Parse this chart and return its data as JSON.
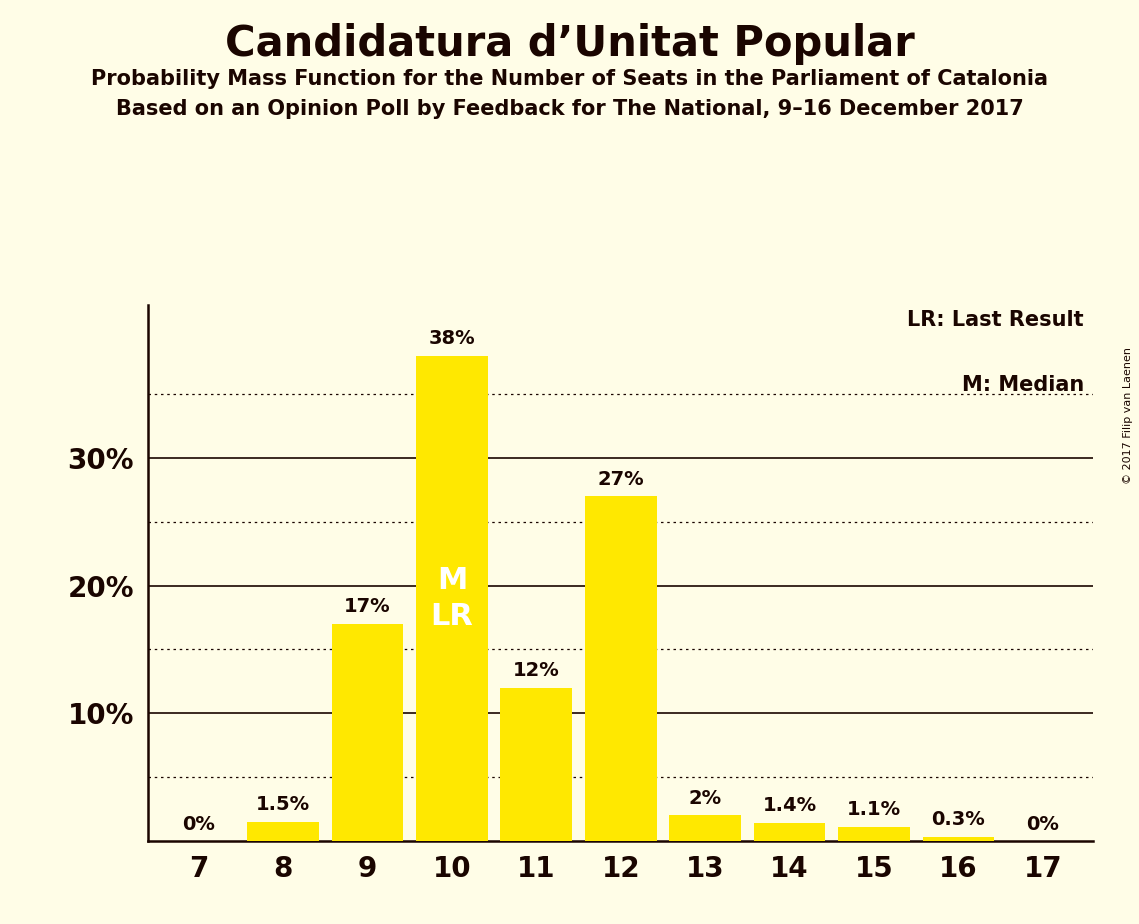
{
  "title": "Candidatura d’Unitat Popular",
  "subtitle1": "Probability Mass Function for the Number of Seats in the Parliament of Catalonia",
  "subtitle2": "Based on an Opinion Poll by Feedback for The National, 9–16 December 2017",
  "copyright": "© 2017 Filip van Laenen",
  "categories": [
    7,
    8,
    9,
    10,
    11,
    12,
    13,
    14,
    15,
    16,
    17
  ],
  "values": [
    0,
    1.5,
    17,
    38,
    12,
    27,
    2,
    1.4,
    1.1,
    0.3,
    0
  ],
  "bar_color": "#FFE800",
  "background_color": "#FFFDE7",
  "text_color": "#1a0500",
  "median_seat": 10,
  "last_result_seat": 10,
  "legend_lr": "LR: Last Result",
  "legend_m": "M: Median",
  "ylim": [
    0,
    42
  ],
  "yticks": [
    10,
    20,
    30
  ],
  "dotted_yticks": [
    5,
    15,
    25,
    35
  ],
  "bar_labels": [
    "0%",
    "1.5%",
    "17%",
    "38%",
    "12%",
    "27%",
    "2%",
    "1.4%",
    "1.1%",
    "0.3%",
    "0%"
  ]
}
